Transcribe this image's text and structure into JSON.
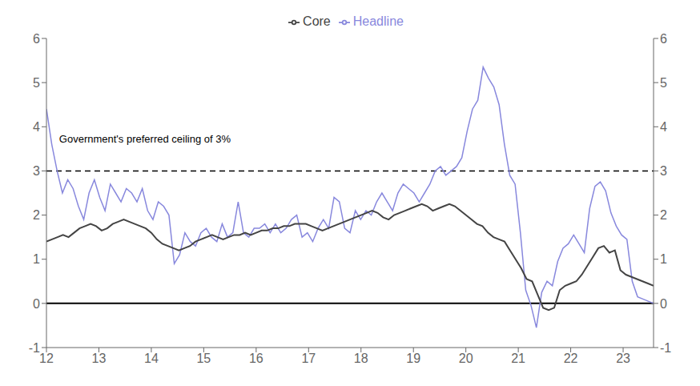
{
  "chart_data": {
    "type": "line",
    "xlim": [
      12.0,
      23.58
    ],
    "xticks": [
      12,
      13,
      14,
      15,
      16,
      17,
      18,
      19,
      20,
      21,
      22,
      23
    ],
    "ylim": [
      -1,
      6
    ],
    "yticks": [
      -1,
      0,
      1,
      2,
      3,
      4,
      5,
      6
    ],
    "y2lim": [
      -1,
      6
    ],
    "y2ticks": [
      -1,
      0,
      1,
      2,
      3,
      4,
      5,
      6
    ],
    "grid": false,
    "legend": "top",
    "series": [
      {
        "name": "Headline",
        "color": "#8888dd",
        "x": [
          12.0,
          12.1016,
          12.2032,
          12.3047,
          12.4063,
          12.5079,
          12.6095,
          12.7111,
          12.8126,
          12.9142,
          13.0158,
          13.1174,
          13.2189,
          13.3205,
          13.4221,
          13.5237,
          13.6253,
          13.7268,
          13.8284,
          13.93,
          14.0316,
          14.1332,
          14.2347,
          14.3363,
          14.4379,
          14.5395,
          14.6411,
          14.7426,
          14.8442,
          14.9458,
          15.0474,
          15.1489,
          15.2505,
          15.3521,
          15.4537,
          15.5553,
          15.6568,
          15.7584,
          15.86,
          15.9616,
          16.0632,
          16.1647,
          16.2663,
          16.3679,
          16.4695,
          16.5711,
          16.6726,
          16.7742,
          16.8758,
          16.9774,
          17.0789,
          17.1805,
          17.2821,
          17.3837,
          17.4853,
          17.5868,
          17.6884,
          17.79,
          17.8916,
          17.9932,
          18.0947,
          18.1963,
          18.2979,
          18.3995,
          18.5011,
          18.6026,
          18.7042,
          18.8058,
          18.9074,
          19.0089,
          19.1105,
          19.2121,
          19.3137,
          19.4153,
          19.5168,
          19.6184,
          19.72,
          19.8216,
          19.9232,
          20.0247,
          20.1263,
          20.2279,
          20.3295,
          20.4311,
          20.5326,
          20.6342,
          20.7358,
          20.8374,
          20.9389,
          21.0405,
          21.1421,
          21.2437,
          21.3453,
          21.4468,
          21.5484,
          21.65,
          21.7516,
          21.8532,
          21.9547,
          22.0563,
          22.1579,
          22.2595,
          22.3611,
          22.4626,
          22.5642,
          22.6658,
          22.7674,
          22.8689,
          22.9705,
          23.0721,
          23.1737,
          23.2753,
          23.3768,
          23.4784,
          23.58
        ],
        "values": [
          4.4,
          3.6,
          3.0,
          2.5,
          2.8,
          2.6,
          2.2,
          1.9,
          2.5,
          2.8,
          2.4,
          2.1,
          2.7,
          2.5,
          2.3,
          2.6,
          2.5,
          2.3,
          2.6,
          2.1,
          1.9,
          2.3,
          2.2,
          2.0,
          0.9,
          1.1,
          1.6,
          1.4,
          1.3,
          1.6,
          1.7,
          1.5,
          1.4,
          1.8,
          1.5,
          1.6,
          2.3,
          1.6,
          1.5,
          1.7,
          1.7,
          1.8,
          1.6,
          1.8,
          1.6,
          1.7,
          1.9,
          2.0,
          1.5,
          1.6,
          1.4,
          1.7,
          1.9,
          1.7,
          2.4,
          2.3,
          1.7,
          1.6,
          2.1,
          1.9,
          2.1,
          2.0,
          2.3,
          2.5,
          2.3,
          2.1,
          2.5,
          2.7,
          2.6,
          2.5,
          2.3,
          2.5,
          2.7,
          3.0,
          3.1,
          2.9,
          3.0,
          3.1,
          3.3,
          3.9,
          4.4,
          4.6,
          5.35,
          5.1,
          4.9,
          4.5,
          3.6,
          2.9,
          2.7,
          1.6,
          0.3,
          -0.05,
          -0.55,
          0.25,
          0.5,
          0.4,
          0.95,
          1.25,
          1.35,
          1.55,
          1.35,
          1.15,
          2.15,
          2.65,
          2.75,
          2.55,
          2.05,
          1.75,
          1.55,
          1.45,
          0.5,
          0.15,
          0.1,
          0.05,
          0.0
        ]
      },
      {
        "name": "Core",
        "color": "#444444",
        "x": [
          12.0,
          12.1053,
          12.2105,
          12.3158,
          12.4211,
          12.5264,
          12.6316,
          12.7369,
          12.8422,
          12.9475,
          13.0527,
          13.158,
          13.2633,
          13.3685,
          13.4738,
          13.5791,
          13.6844,
          13.7896,
          13.8949,
          14.0002,
          14.1055,
          14.2107,
          14.316,
          14.4213,
          14.5265,
          14.6318,
          14.7371,
          14.8424,
          14.9476,
          15.0529,
          15.1582,
          15.2635,
          15.3687,
          15.474,
          15.5793,
          15.6845,
          15.7898,
          15.8951,
          16.0004,
          16.1056,
          16.2109,
          16.3162,
          16.4215,
          16.5267,
          16.632,
          16.7373,
          16.8425,
          16.9478,
          17.0531,
          17.1584,
          17.2636,
          17.3689,
          17.4742,
          17.5795,
          17.6847,
          17.79,
          17.8953,
          18.0005,
          18.1058,
          18.2111,
          18.3164,
          18.4216,
          18.5269,
          18.6322,
          18.7375,
          18.8427,
          18.948,
          19.0533,
          19.1585,
          19.2638,
          19.3691,
          19.4744,
          19.5796,
          19.6849,
          19.7902,
          19.8955,
          20.0007,
          20.106,
          20.2113,
          20.3165,
          20.4218,
          20.5271,
          20.6324,
          20.7376,
          20.8429,
          20.9482,
          21.0535,
          21.1587,
          21.264,
          21.3693,
          21.4745,
          21.5798,
          21.6851,
          21.7904,
          21.8956,
          22.0009,
          22.1062,
          22.2115,
          22.3167,
          22.422,
          22.5273,
          22.6325,
          22.7378,
          22.8431,
          22.9484,
          23.0536,
          23.1589,
          23.2642,
          23.3695,
          23.4747,
          23.58
        ],
        "values": [
          1.4,
          1.45,
          1.5,
          1.55,
          1.5,
          1.6,
          1.7,
          1.75,
          1.8,
          1.75,
          1.65,
          1.7,
          1.8,
          1.85,
          1.9,
          1.85,
          1.8,
          1.75,
          1.7,
          1.6,
          1.45,
          1.35,
          1.3,
          1.25,
          1.2,
          1.25,
          1.3,
          1.4,
          1.45,
          1.5,
          1.55,
          1.5,
          1.45,
          1.5,
          1.55,
          1.55,
          1.6,
          1.55,
          1.6,
          1.65,
          1.65,
          1.7,
          1.7,
          1.75,
          1.75,
          1.8,
          1.8,
          1.8,
          1.75,
          1.7,
          1.65,
          1.7,
          1.75,
          1.8,
          1.85,
          1.9,
          1.95,
          2.0,
          2.05,
          2.1,
          2.05,
          1.95,
          1.9,
          2.0,
          2.05,
          2.1,
          2.15,
          2.2,
          2.25,
          2.2,
          2.1,
          2.15,
          2.2,
          2.25,
          2.2,
          2.1,
          2.0,
          1.9,
          1.8,
          1.75,
          1.6,
          1.5,
          1.45,
          1.4,
          1.2,
          1.0,
          0.8,
          0.55,
          0.5,
          0.2,
          -0.1,
          -0.15,
          -0.1,
          0.3,
          0.4,
          0.45,
          0.5,
          0.65,
          0.85,
          1.05,
          1.25,
          1.3,
          1.15,
          1.2,
          0.75,
          0.65,
          0.6,
          0.55,
          0.5,
          0.45,
          0.4
        ]
      }
    ],
    "hlines": [
      {
        "y": 3,
        "color": "#000000",
        "line_style": "dashed"
      },
      {
        "y": 0,
        "color": "#000000",
        "line_style": "solid"
      }
    ],
    "annotations": [
      {
        "text": "Government's preferred ceiling of 3%",
        "x": 12.15,
        "y": 3.72
      }
    ]
  }
}
